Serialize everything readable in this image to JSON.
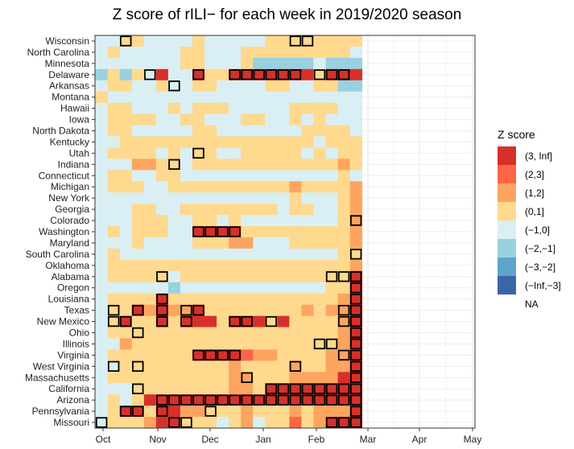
{
  "chart_data": {
    "type": "heatmap",
    "title": "Z score of rILI− for each week in 2019/2020 season",
    "xlabel": "",
    "ylabel": "",
    "x_ticks": [
      "Oct",
      "Nov",
      "Dec",
      "Jan",
      "Feb",
      "Mar",
      "Apr",
      "May"
    ],
    "rows": [
      "Wisconsin",
      "North Carolina",
      "Minnesota",
      "Delaware",
      "Arkansas",
      "Montana",
      "Hawaii",
      "Iowa",
      "North Dakota",
      "Kentucky",
      "Utah",
      "Indiana",
      "Connecticut",
      "Michigan",
      "New York",
      "Georgia",
      "Colorado",
      "Washington",
      "Maryland",
      "South Carolina",
      "Oklahoma",
      "Alabama",
      "Oregon",
      "Louisiana",
      "Texas",
      "New Mexico",
      "Ohio",
      "Illinois",
      "Virginia",
      "West Virginia",
      "Massachusetts",
      "California",
      "Arizona",
      "Pennsylvania",
      "Missouri"
    ],
    "weeks": 22,
    "values": [
      [
        0,
        0,
        1,
        1,
        0,
        0,
        0,
        0,
        1,
        0,
        0,
        0,
        0,
        0,
        1,
        1,
        1,
        1,
        1,
        1,
        1,
        1
      ],
      [
        0,
        1,
        0,
        0,
        0,
        0,
        0,
        1,
        1,
        0,
        0,
        0,
        1,
        1,
        1,
        1,
        1,
        1,
        1,
        1,
        1,
        0
      ],
      [
        0,
        0,
        0,
        0,
        0,
        0,
        0,
        1,
        1,
        0,
        0,
        0,
        1,
        -1,
        -1,
        -1,
        -1,
        -1,
        0,
        -1,
        -1,
        -1
      ],
      [
        -1,
        1,
        -1,
        1,
        0,
        4,
        0,
        0,
        4,
        1,
        1,
        4,
        4,
        4,
        4,
        4,
        4,
        4,
        1,
        4,
        4,
        4
      ],
      [
        0,
        1,
        1,
        0,
        0,
        1,
        0,
        0,
        1,
        1,
        0,
        0,
        0,
        0,
        1,
        1,
        0,
        0,
        1,
        1,
        -1,
        -1
      ],
      [
        1,
        0,
        0,
        0,
        0,
        0,
        0,
        0,
        0,
        0,
        0,
        0,
        0,
        0,
        0,
        0,
        0,
        0,
        0,
        0,
        0,
        0
      ],
      [
        0,
        1,
        1,
        0,
        0,
        0,
        1,
        0,
        1,
        1,
        1,
        0,
        0,
        0,
        0,
        0,
        1,
        1,
        1,
        1,
        0,
        0
      ],
      [
        0,
        1,
        1,
        1,
        1,
        0,
        0,
        1,
        1,
        0,
        0,
        0,
        1,
        1,
        0,
        0,
        1,
        0,
        1,
        0,
        0,
        0
      ],
      [
        0,
        1,
        1,
        0,
        0,
        0,
        0,
        0,
        1,
        1,
        0,
        0,
        0,
        0,
        0,
        0,
        0,
        1,
        1,
        1,
        1,
        0
      ],
      [
        0,
        0,
        1,
        1,
        1,
        1,
        1,
        1,
        1,
        1,
        1,
        1,
        1,
        1,
        1,
        1,
        1,
        1,
        0,
        1,
        1,
        1
      ],
      [
        0,
        1,
        1,
        1,
        1,
        0,
        1,
        0,
        1,
        1,
        0,
        0,
        1,
        1,
        1,
        1,
        1,
        0,
        1,
        0,
        1,
        1
      ],
      [
        0,
        0,
        0,
        2,
        2,
        1,
        1,
        0,
        1,
        1,
        1,
        1,
        1,
        1,
        1,
        1,
        1,
        1,
        1,
        1,
        2,
        1
      ],
      [
        0,
        1,
        1,
        0,
        0,
        1,
        1,
        0,
        0,
        0,
        0,
        0,
        0,
        0,
        0,
        0,
        0,
        0,
        0,
        0,
        1,
        0
      ],
      [
        0,
        1,
        1,
        1,
        0,
        0,
        1,
        1,
        1,
        1,
        1,
        1,
        1,
        1,
        1,
        1,
        2,
        1,
        1,
        1,
        1,
        2
      ],
      [
        0,
        0,
        0,
        0,
        0,
        0,
        0,
        0,
        0,
        0,
        0,
        0,
        0,
        0,
        0,
        0,
        1,
        0,
        0,
        0,
        1,
        2
      ],
      [
        0,
        0,
        0,
        1,
        1,
        0,
        0,
        1,
        1,
        1,
        1,
        1,
        1,
        1,
        1,
        0,
        1,
        1,
        0,
        0,
        1,
        2
      ],
      [
        0,
        0,
        0,
        1,
        1,
        1,
        0,
        0,
        1,
        1,
        0,
        1,
        0,
        0,
        0,
        0,
        0,
        0,
        0,
        0,
        1,
        2
      ],
      [
        0,
        1,
        0,
        1,
        1,
        1,
        0,
        0,
        4,
        4,
        4,
        4,
        1,
        1,
        1,
        1,
        1,
        1,
        1,
        1,
        1,
        2
      ],
      [
        0,
        0,
        0,
        1,
        0,
        0,
        0,
        0,
        1,
        1,
        1,
        2,
        2,
        0,
        0,
        0,
        1,
        1,
        1,
        1,
        1,
        2
      ],
      [
        0,
        1,
        0,
        0,
        0,
        0,
        0,
        0,
        0,
        0,
        0,
        0,
        0,
        0,
        0,
        0,
        0,
        0,
        0,
        0,
        1,
        1
      ],
      [
        0,
        1,
        1,
        1,
        1,
        1,
        1,
        1,
        1,
        1,
        1,
        1,
        1,
        1,
        1,
        1,
        1,
        1,
        1,
        1,
        1,
        2
      ],
      [
        0,
        1,
        1,
        1,
        1,
        1,
        0,
        1,
        1,
        1,
        1,
        1,
        1,
        1,
        1,
        1,
        1,
        1,
        1,
        1,
        1,
        4
      ],
      [
        0,
        0,
        0,
        0,
        0,
        0,
        -1,
        0,
        0,
        0,
        0,
        0,
        0,
        0,
        0,
        0,
        0,
        0,
        0,
        1,
        1,
        4
      ],
      [
        0,
        1,
        1,
        1,
        1,
        4,
        1,
        1,
        1,
        1,
        1,
        1,
        1,
        1,
        1,
        1,
        1,
        1,
        1,
        1,
        2,
        4
      ],
      [
        0,
        1,
        1,
        4,
        2,
        4,
        2,
        2,
        4,
        1,
        1,
        1,
        1,
        1,
        1,
        1,
        1,
        2,
        1,
        2,
        2,
        4
      ],
      [
        0,
        1,
        4,
        1,
        1,
        4,
        1,
        4,
        4,
        4,
        1,
        4,
        4,
        4,
        1,
        4,
        1,
        1,
        1,
        1,
        2,
        4
      ],
      [
        0,
        1,
        1,
        1,
        1,
        1,
        1,
        1,
        1,
        1,
        1,
        1,
        1,
        1,
        1,
        1,
        1,
        1,
        1,
        1,
        2,
        4
      ],
      [
        0,
        0,
        2,
        1,
        1,
        1,
        1,
        1,
        1,
        1,
        1,
        1,
        1,
        1,
        1,
        1,
        1,
        1,
        1,
        1,
        2,
        4
      ],
      [
        0,
        1,
        1,
        1,
        1,
        1,
        1,
        1,
        4,
        4,
        4,
        4,
        3,
        2,
        2,
        1,
        1,
        1,
        1,
        2,
        2,
        4
      ],
      [
        0,
        0,
        1,
        1,
        1,
        1,
        1,
        1,
        1,
        1,
        1,
        2,
        1,
        1,
        1,
        1,
        2,
        1,
        1,
        2,
        2,
        4
      ],
      [
        0,
        1,
        1,
        1,
        1,
        1,
        1,
        1,
        1,
        1,
        1,
        2,
        2,
        1,
        1,
        1,
        2,
        2,
        2,
        2,
        4,
        4
      ],
      [
        0,
        0,
        0,
        1,
        1,
        1,
        1,
        1,
        1,
        1,
        1,
        2,
        2,
        1,
        4,
        4,
        4,
        4,
        4,
        4,
        4,
        4
      ],
      [
        0,
        1,
        0,
        1,
        4,
        4,
        4,
        4,
        4,
        4,
        4,
        4,
        4,
        4,
        4,
        4,
        4,
        4,
        4,
        4,
        4,
        4
      ],
      [
        0,
        1,
        4,
        4,
        1,
        4,
        4,
        2,
        2,
        1,
        1,
        1,
        2,
        1,
        1,
        1,
        2,
        1,
        2,
        2,
        2,
        4
      ],
      [
        0,
        1,
        1,
        1,
        2,
        4,
        4,
        1,
        1,
        1,
        0,
        1,
        2,
        0,
        1,
        1,
        3,
        1,
        2,
        4,
        4,
        4
      ]
    ],
    "outlined": [
      [
        0,
        2
      ],
      [
        0,
        16
      ],
      [
        0,
        17
      ],
      [
        3,
        4
      ],
      [
        3,
        8
      ],
      [
        3,
        11
      ],
      [
        3,
        12
      ],
      [
        3,
        13
      ],
      [
        3,
        14
      ],
      [
        3,
        15
      ],
      [
        3,
        16
      ],
      [
        3,
        18
      ],
      [
        3,
        19
      ],
      [
        3,
        20
      ],
      [
        4,
        6
      ],
      [
        10,
        8
      ],
      [
        11,
        6
      ],
      [
        16,
        21
      ],
      [
        17,
        8
      ],
      [
        17,
        9
      ],
      [
        17,
        10
      ],
      [
        17,
        11
      ],
      [
        19,
        21
      ],
      [
        21,
        5
      ],
      [
        21,
        19
      ],
      [
        21,
        20
      ],
      [
        21,
        21
      ],
      [
        22,
        21
      ],
      [
        23,
        5
      ],
      [
        23,
        21
      ],
      [
        24,
        1
      ],
      [
        24,
        3
      ],
      [
        24,
        5
      ],
      [
        24,
        7
      ],
      [
        24,
        8
      ],
      [
        24,
        20
      ],
      [
        24,
        21
      ],
      [
        25,
        1
      ],
      [
        25,
        2
      ],
      [
        25,
        5
      ],
      [
        25,
        7
      ],
      [
        25,
        11
      ],
      [
        25,
        12
      ],
      [
        25,
        14
      ],
      [
        25,
        20
      ],
      [
        25,
        21
      ],
      [
        26,
        3
      ],
      [
        26,
        21
      ],
      [
        27,
        18
      ],
      [
        27,
        19
      ],
      [
        27,
        21
      ],
      [
        28,
        8
      ],
      [
        28,
        9
      ],
      [
        28,
        10
      ],
      [
        28,
        11
      ],
      [
        28,
        20
      ],
      [
        28,
        21
      ],
      [
        29,
        1
      ],
      [
        29,
        3
      ],
      [
        29,
        16
      ],
      [
        29,
        21
      ],
      [
        30,
        12
      ],
      [
        30,
        21
      ],
      [
        31,
        3
      ],
      [
        31,
        14
      ],
      [
        31,
        15
      ],
      [
        31,
        16
      ],
      [
        31,
        17
      ],
      [
        31,
        18
      ],
      [
        31,
        19
      ],
      [
        31,
        20
      ],
      [
        31,
        21
      ],
      [
        32,
        5
      ],
      [
        32,
        6
      ],
      [
        32,
        7
      ],
      [
        32,
        8
      ],
      [
        32,
        9
      ],
      [
        32,
        10
      ],
      [
        32,
        11
      ],
      [
        32,
        12
      ],
      [
        32,
        13
      ],
      [
        32,
        14
      ],
      [
        32,
        15
      ],
      [
        32,
        16
      ],
      [
        32,
        17
      ],
      [
        32,
        18
      ],
      [
        32,
        19
      ],
      [
        32,
        20
      ],
      [
        32,
        21
      ],
      [
        33,
        2
      ],
      [
        33,
        3
      ],
      [
        33,
        5
      ],
      [
        33,
        9
      ],
      [
        33,
        21
      ],
      [
        34,
        0
      ],
      [
        34,
        6
      ],
      [
        34,
        7
      ],
      [
        34,
        19
      ],
      [
        34,
        20
      ],
      [
        34,
        21
      ]
    ],
    "color_scale": {
      "4": "#d7302b",
      "3": "#fd6546",
      "2": "#fda560",
      "1": "#fed98e",
      "0": "#d9eff4",
      "-1": "#98d2e1",
      "-2": "#5da5cc",
      "-3": "#3a66a9"
    },
    "legend": {
      "title": "Z score",
      "entries": [
        {
          "label": "(3, Inf]",
          "key": "4"
        },
        {
          "label": "(2,3]",
          "key": "3"
        },
        {
          "label": "(1,2]",
          "key": "2"
        },
        {
          "label": "(0,1]",
          "key": "1"
        },
        {
          "label": "(−1,0]",
          "key": "0"
        },
        {
          "label": "(−2,−1]",
          "key": "-1"
        },
        {
          "label": "(−3,−2]",
          "key": "-2"
        },
        {
          "label": "(−Inf,−3]",
          "key": "-3"
        },
        {
          "label": "NA",
          "key": "NA"
        }
      ],
      "position": "right"
    }
  }
}
